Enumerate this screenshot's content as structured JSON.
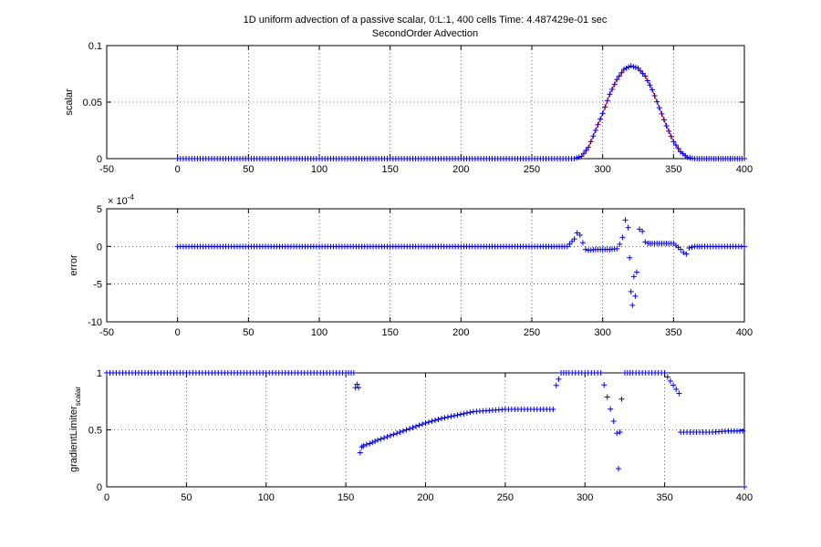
{
  "figure": {
    "title_line1": "1D uniform advection of a passive scalar, 0:L:1, 400 cells Time: 4.487429e-01 sec",
    "title_line2": "SecondOrder Advection"
  },
  "chart_data": [
    {
      "type": "scatter",
      "title": "",
      "xlabel": "",
      "ylabel": "scalar",
      "xlim": [
        -50,
        400
      ],
      "ylim": [
        0,
        0.1
      ],
      "xticks": [
        -50,
        0,
        50,
        100,
        150,
        200,
        250,
        300,
        350,
        400
      ],
      "yticks": [
        0,
        0.05,
        0.1
      ],
      "ytick_labels": [
        "0",
        "0.05",
        "0.1"
      ],
      "grid": "dotted",
      "marker": "+",
      "marker_color": "#0000ff",
      "line_color": "#ff0000",
      "series": [
        {
          "x": [
            0,
            20,
            40,
            60,
            80,
            100,
            120,
            140,
            160,
            180,
            200,
            220,
            240,
            260,
            280,
            285,
            290,
            295,
            300,
            305,
            310,
            315,
            320,
            325,
            330,
            335,
            340,
            345,
            350,
            355,
            360,
            365,
            370,
            375,
            380,
            385,
            390,
            395,
            400
          ],
          "y": [
            0,
            0,
            0,
            0,
            0,
            0,
            0,
            0,
            0,
            0,
            0,
            0,
            0,
            0,
            0,
            0.002,
            0.01,
            0.025,
            0.04,
            0.057,
            0.07,
            0.079,
            0.082,
            0.08,
            0.073,
            0.061,
            0.045,
            0.029,
            0.015,
            0.006,
            0.001,
            0,
            0,
            0,
            0,
            0,
            0,
            0,
            0
          ]
        }
      ]
    },
    {
      "type": "scatter",
      "title": "",
      "xlabel": "",
      "ylabel": "error",
      "multiplier_label": "× 10",
      "multiplier_exponent": "-4",
      "xlim": [
        -50,
        400
      ],
      "ylim": [
        -10,
        5
      ],
      "xticks": [
        -50,
        0,
        50,
        100,
        150,
        200,
        250,
        300,
        350,
        400
      ],
      "yticks": [
        -10,
        -5,
        0,
        5
      ],
      "grid": "dotted",
      "marker": "+",
      "marker_color": "#0000ff",
      "series": [
        {
          "x": [
            0,
            20,
            40,
            60,
            80,
            100,
            120,
            140,
            160,
            180,
            200,
            220,
            240,
            260,
            275,
            280,
            282,
            284,
            286,
            288,
            290,
            295,
            300,
            305,
            310,
            312,
            314,
            316,
            318,
            319,
            320,
            321,
            322,
            323,
            324,
            326,
            328,
            330,
            332,
            335,
            340,
            345,
            350,
            355,
            357,
            359,
            361,
            365,
            370,
            380,
            390,
            400
          ],
          "y": [
            0,
            0,
            0,
            0,
            0,
            0,
            0,
            0,
            0,
            0,
            0,
            0,
            0,
            0,
            0,
            1.0,
            1.8,
            1.5,
            0.5,
            -0.4,
            -0.5,
            -0.4,
            -0.4,
            -0.4,
            -0.3,
            0.3,
            1.2,
            3.5,
            2.5,
            -1.5,
            -6.0,
            -7.8,
            -4.0,
            -6.6,
            -3.4,
            2.3,
            2.0,
            0.6,
            0.4,
            0.4,
            0.4,
            0.4,
            0.4,
            -0.4,
            -0.8,
            -1.0,
            -0.2,
            0,
            0,
            0,
            0,
            0
          ]
        }
      ]
    },
    {
      "type": "scatter",
      "title": "",
      "xlabel": "",
      "ylabel": "gradientLimiter",
      "ylabel_subscript": "scalar",
      "xlim": [
        0,
        400
      ],
      "ylim": [
        0,
        1
      ],
      "xticks": [
        0,
        50,
        100,
        150,
        200,
        250,
        300,
        350,
        400
      ],
      "yticks": [
        0,
        0.5,
        1
      ],
      "ytick_labels": [
        "0",
        "0.5",
        "1"
      ],
      "grid": "dotted",
      "marker": "+",
      "marker_color": "#0000ff",
      "series": [
        {
          "x": [
            0,
            10,
            20,
            30,
            40,
            50,
            60,
            70,
            80,
            90,
            100,
            110,
            120,
            130,
            140,
            150,
            155,
            156,
            157,
            158,
            159,
            160,
            161,
            165,
            170,
            180,
            190,
            200,
            210,
            220,
            230,
            240,
            250,
            260,
            270,
            280,
            282,
            285,
            290,
            300,
            310,
            320,
            321,
            322,
            323,
            325,
            330,
            340,
            350,
            359,
            360,
            362,
            370,
            380,
            390,
            399,
            400
          ],
          "y": [
            1,
            1,
            1,
            1,
            1,
            1,
            1,
            1,
            1,
            1,
            1,
            1,
            1,
            1,
            1,
            1,
            1,
            0.87,
            0.9,
            0.87,
            0.3,
            0.35,
            0.36,
            0.38,
            0.41,
            0.46,
            0.51,
            0.56,
            0.6,
            0.63,
            0.66,
            0.67,
            0.68,
            0.68,
            0.68,
            0.68,
            0.89,
            1,
            1,
            1,
            1,
            0.47,
            0.16,
            0.48,
            0.77,
            1,
            1,
            1,
            1,
            0.82,
            0.48,
            0.48,
            0.48,
            0.48,
            0.49,
            0.49,
            0
          ]
        }
      ]
    }
  ]
}
